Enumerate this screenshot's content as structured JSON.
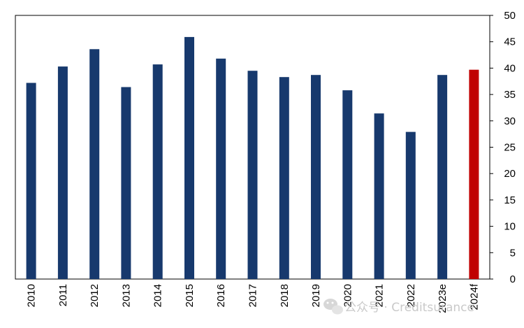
{
  "chart_data": {
    "type": "bar",
    "categories": [
      "2010",
      "2011",
      "2012",
      "2013",
      "2014",
      "2015",
      "2016",
      "2017",
      "2018",
      "2019",
      "2020",
      "2021",
      "2022",
      "2023e",
      "2024f"
    ],
    "values": [
      37.2,
      40.3,
      43.6,
      36.4,
      40.7,
      45.9,
      41.8,
      39.5,
      38.3,
      38.7,
      35.8,
      31.4,
      27.9,
      38.7,
      39.7
    ],
    "ylim": [
      0,
      50
    ],
    "yticks": [
      0,
      5,
      10,
      15,
      20,
      25,
      30,
      35,
      40,
      45,
      50
    ],
    "y_axis_side": "right",
    "grid": false,
    "colors": {
      "actual": "#17396d",
      "forecast": "#c00000"
    },
    "highlight_categories": [
      "2024f"
    ]
  },
  "watermark": {
    "text": "公众号 · Creditsurance"
  }
}
